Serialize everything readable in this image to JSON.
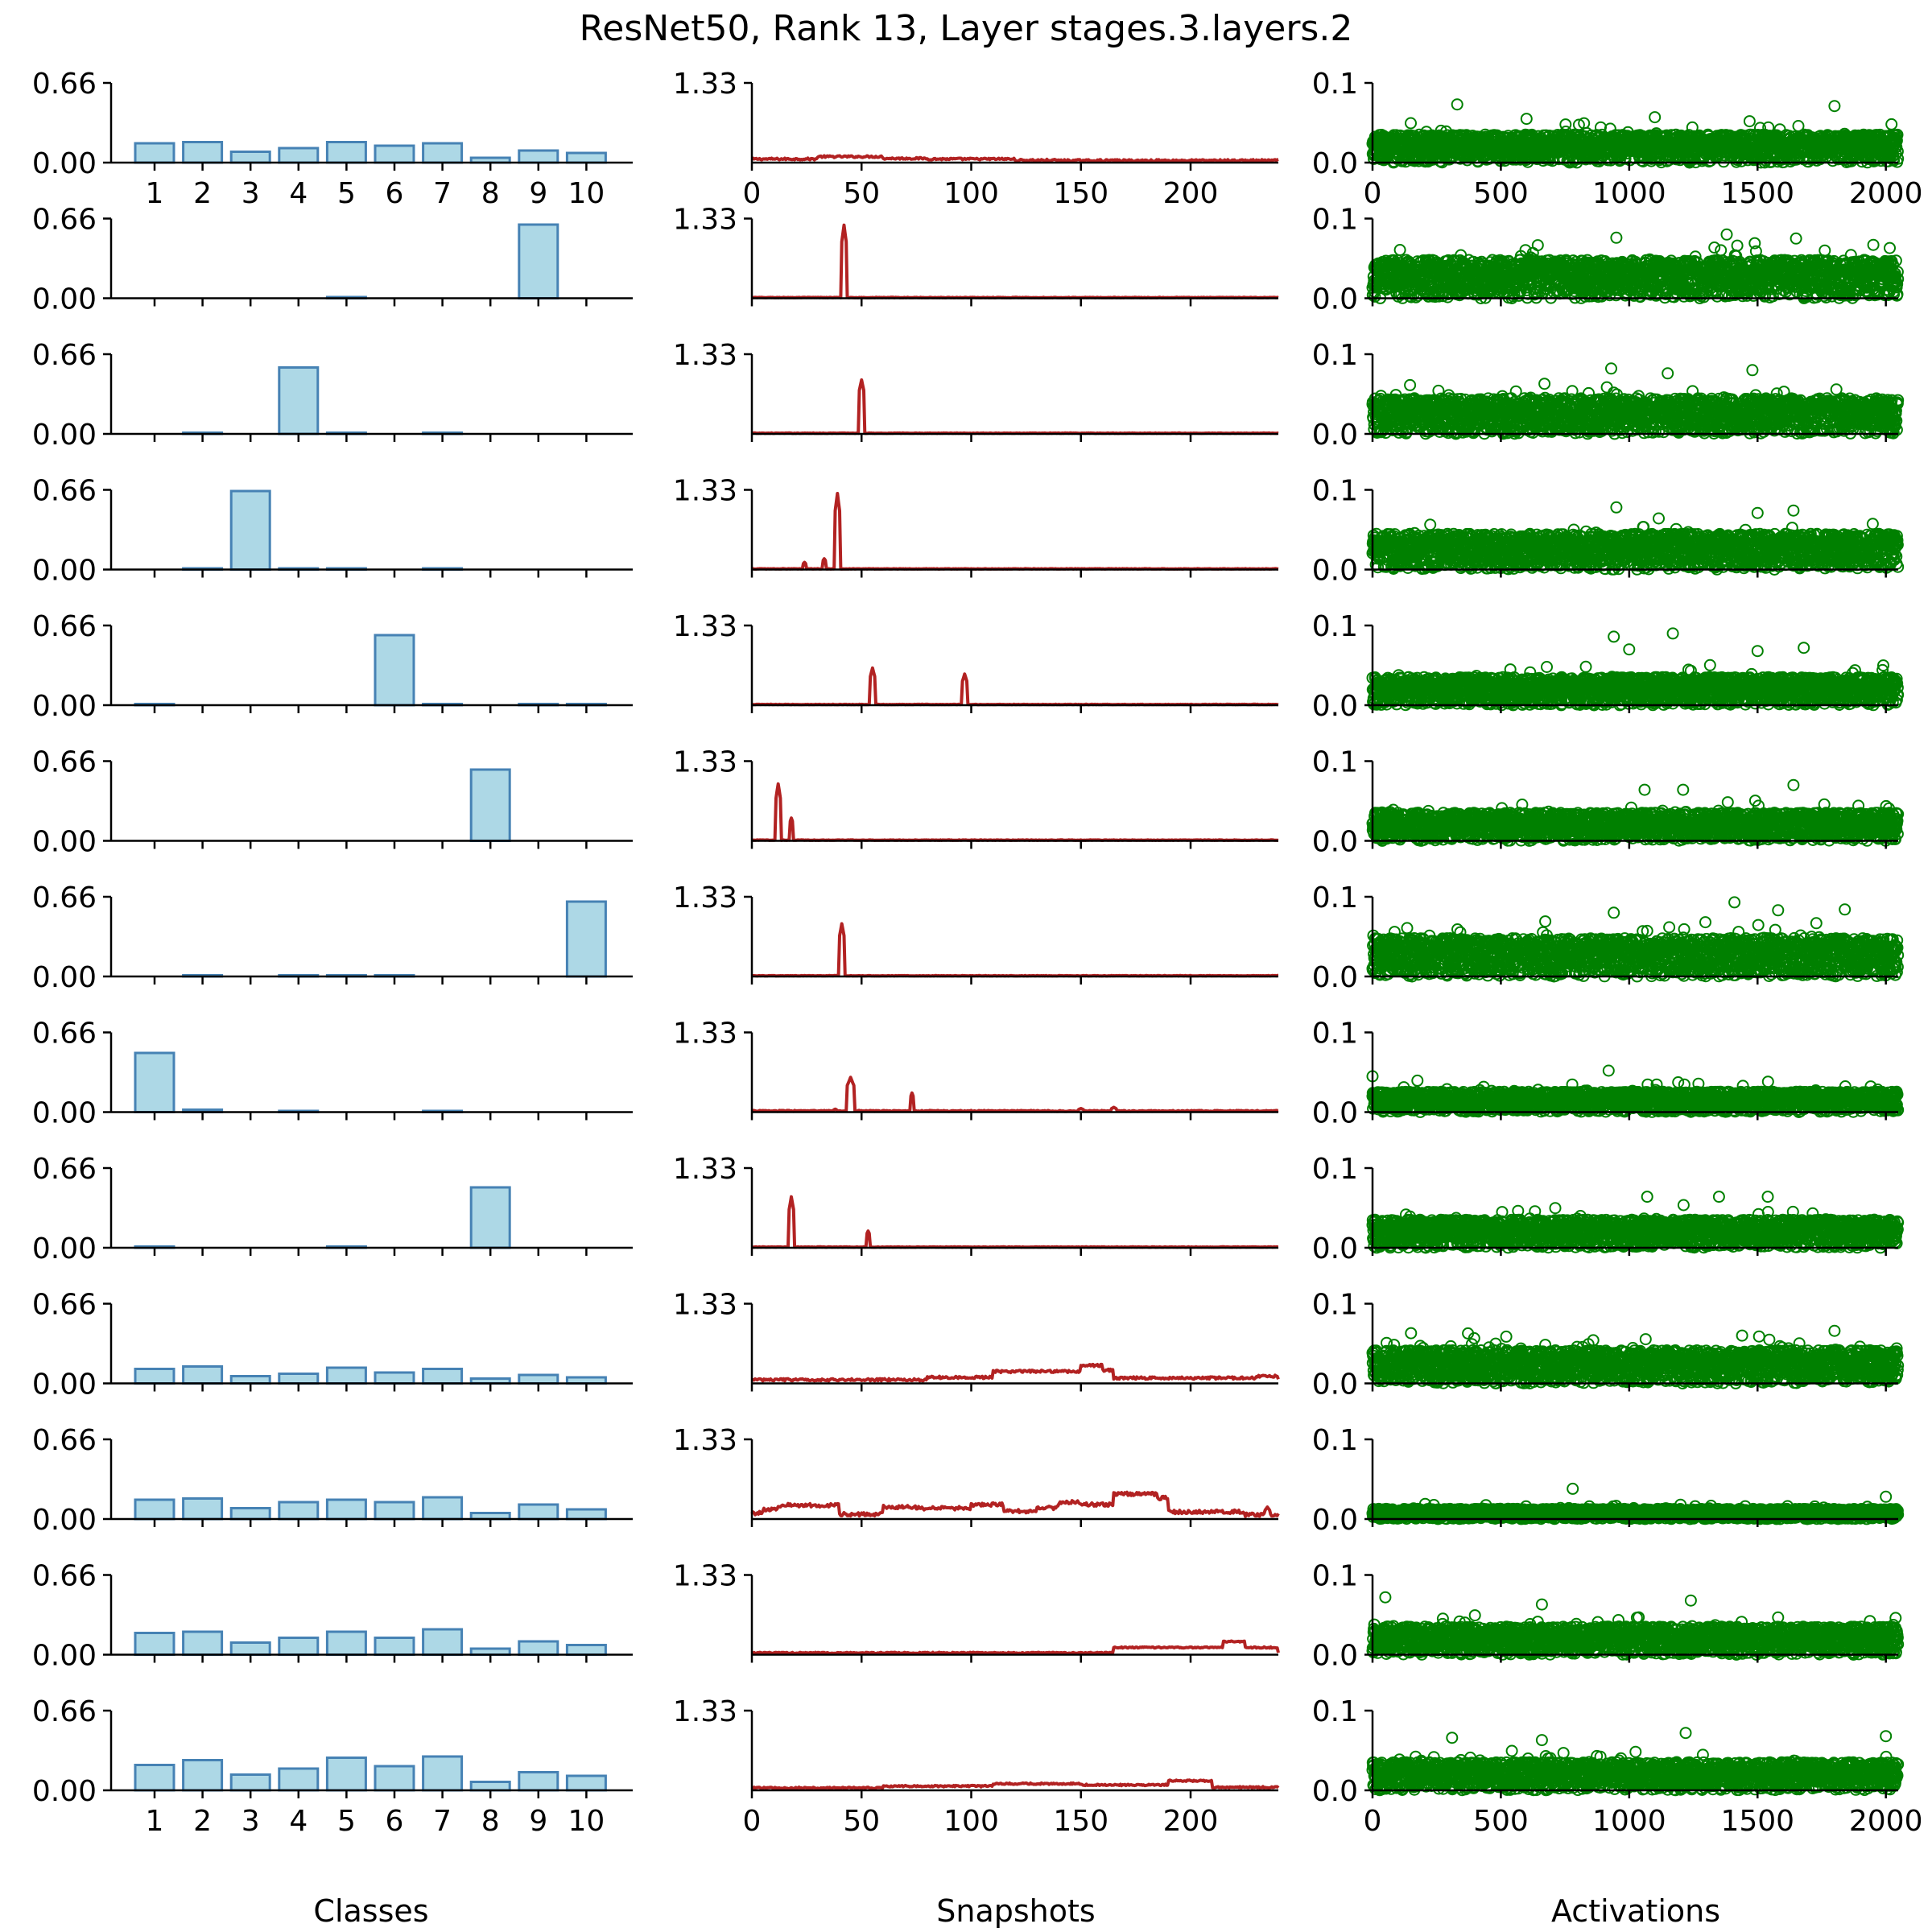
{
  "chart_data": {
    "type": "grid",
    "title": "ResNet50, Rank 13, Layer stages.3.layers.2",
    "n_rows": 13,
    "colors": {
      "bar_fill": "#add8e6",
      "bar_edge": "#4682b4",
      "line": "#b22222",
      "scatter": "#008000"
    },
    "bar_panel": {
      "type": "bar",
      "xlabel": "Classes",
      "categories": [
        "1",
        "2",
        "3",
        "4",
        "5",
        "6",
        "7",
        "8",
        "9",
        "10"
      ],
      "y_ticks": [
        "0.66",
        "0.00"
      ],
      "ylim": [
        0,
        0.66
      ],
      "rows": [
        [
          0.16,
          0.17,
          0.09,
          0.12,
          0.17,
          0.14,
          0.16,
          0.04,
          0.1,
          0.08
        ],
        [
          0.0,
          0.0,
          0.0,
          0.0,
          0.01,
          0.0,
          0.0,
          0.0,
          0.61,
          0.0
        ],
        [
          0.0,
          0.01,
          0.0,
          0.55,
          0.01,
          0.0,
          0.01,
          0.0,
          0.0,
          0.0
        ],
        [
          0.0,
          0.01,
          0.65,
          0.01,
          0.01,
          0.0,
          0.01,
          0.0,
          0.0,
          0.0
        ],
        [
          0.01,
          0.0,
          0.0,
          0.0,
          0.0,
          0.58,
          0.01,
          0.0,
          0.01,
          0.01
        ],
        [
          0.0,
          0.0,
          0.0,
          0.0,
          0.0,
          0.0,
          0.0,
          0.59,
          0.0,
          0.0
        ],
        [
          0.0,
          0.01,
          0.0,
          0.01,
          0.01,
          0.01,
          0.0,
          0.0,
          0.0,
          0.62
        ],
        [
          0.49,
          0.02,
          0.0,
          0.01,
          0.0,
          0.0,
          0.01,
          0.0,
          0.0,
          0.0
        ],
        [
          0.01,
          0.0,
          0.0,
          0.0,
          0.01,
          0.0,
          0.0,
          0.5,
          0.0,
          0.0
        ],
        [
          0.12,
          0.14,
          0.06,
          0.08,
          0.13,
          0.09,
          0.12,
          0.04,
          0.07,
          0.05
        ],
        [
          0.16,
          0.17,
          0.09,
          0.14,
          0.16,
          0.14,
          0.18,
          0.05,
          0.12,
          0.08
        ],
        [
          0.18,
          0.19,
          0.1,
          0.14,
          0.19,
          0.14,
          0.21,
          0.05,
          0.11,
          0.08
        ],
        [
          0.21,
          0.25,
          0.13,
          0.18,
          0.27,
          0.2,
          0.28,
          0.07,
          0.15,
          0.12
        ]
      ]
    },
    "line_panel": {
      "type": "line",
      "xlabel": "Snapshots",
      "x_ticks": [
        "0",
        "50",
        "100",
        "150",
        "200"
      ],
      "xlim": [
        0,
        240
      ],
      "y_ticks": [
        "1.33"
      ],
      "ylim": [
        0,
        1.33
      ],
      "rows": [
        {
          "base": 0.06,
          "noise": 0.015,
          "spikes": [],
          "segments": [
            [
              30,
              60,
              0.1
            ],
            [
              60,
              80,
              0.07
            ],
            [
              120,
              140,
              0.04
            ],
            [
              140,
              240,
              0.035
            ]
          ]
        },
        {
          "base": 0.012,
          "noise": 0.004,
          "spikes": [
            [
              42,
              1.22,
              1.1
            ]
          ],
          "segments": []
        },
        {
          "base": 0.012,
          "noise": 0.004,
          "spikes": [
            [
              50,
              0.9,
              1.3
            ]
          ],
          "segments": []
        },
        {
          "base": 0.012,
          "noise": 0.004,
          "spikes": [
            [
              24,
              0.12,
              0.8
            ],
            [
              33,
              0.18,
              0.9
            ],
            [
              39,
              1.27,
              1.1
            ]
          ],
          "segments": []
        },
        {
          "base": 0.012,
          "noise": 0.004,
          "spikes": [
            [
              55,
              0.62,
              1.1
            ],
            [
              97,
              0.52,
              1.1
            ]
          ],
          "segments": []
        },
        {
          "base": 0.012,
          "noise": 0.004,
          "spikes": [
            [
              12,
              0.95,
              1.0
            ],
            [
              18,
              0.38,
              0.9
            ]
          ],
          "segments": []
        },
        {
          "base": 0.012,
          "noise": 0.004,
          "spikes": [
            [
              41,
              0.88,
              1.1
            ]
          ],
          "segments": []
        },
        {
          "base": 0.02,
          "noise": 0.008,
          "spikes": [
            [
              45,
              0.58,
              1.6
            ],
            [
              73,
              0.32,
              0.8
            ],
            [
              38,
              0.05,
              0.8
            ],
            [
              150,
              0.06,
              1.0
            ],
            [
              165,
              0.08,
              1.0
            ]
          ],
          "segments": []
        },
        {
          "base": 0.012,
          "noise": 0.004,
          "spikes": [
            [
              18,
              0.85,
              1.0
            ],
            [
              53,
              0.28,
              0.9
            ]
          ],
          "segments": []
        },
        {
          "base": 0.06,
          "noise": 0.02,
          "spikes": [],
          "segments": [
            [
              80,
              110,
              0.1
            ],
            [
              110,
              150,
              0.2
            ],
            [
              150,
              160,
              0.3
            ],
            [
              160,
              165,
              0.22
            ],
            [
              165,
              230,
              0.09
            ],
            [
              230,
              240,
              0.12
            ]
          ]
        },
        {
          "base": 0.08,
          "noise": 0.03,
          "spikes": [
            [
              235,
              0.2,
              1.0
            ]
          ],
          "segments": [
            [
              0,
              5,
              0.1
            ],
            [
              5,
              12,
              0.16
            ],
            [
              12,
              40,
              0.23
            ],
            [
              40,
              60,
              0.08
            ],
            [
              60,
              75,
              0.2
            ],
            [
              75,
              100,
              0.18
            ],
            [
              100,
              115,
              0.24
            ],
            [
              115,
              130,
              0.13
            ],
            [
              130,
              140,
              0.19
            ],
            [
              140,
              150,
              0.28
            ],
            [
              150,
              165,
              0.24
            ],
            [
              165,
              185,
              0.42
            ],
            [
              185,
              190,
              0.35
            ],
            [
              190,
              225,
              0.12
            ],
            [
              225,
              240,
              0.07
            ]
          ]
        },
        {
          "base": 0.03,
          "noise": 0.01,
          "spikes": [],
          "segments": [
            [
              165,
              215,
              0.12
            ],
            [
              215,
              225,
              0.22
            ],
            [
              225,
              240,
              0.12
            ]
          ]
        },
        {
          "base": 0.04,
          "noise": 0.012,
          "spikes": [],
          "segments": [
            [
              60,
              110,
              0.07
            ],
            [
              110,
              150,
              0.11
            ],
            [
              150,
              190,
              0.09
            ],
            [
              190,
              210,
              0.16
            ],
            [
              210,
              240,
              0.05
            ]
          ]
        }
      ]
    },
    "scatter_panel": {
      "type": "scatter",
      "xlabel": "Activations",
      "x_ticks": [
        "0",
        "500",
        "1000",
        "1500",
        "2000"
      ],
      "xlim": [
        0,
        2048
      ],
      "y_ticks": [
        "0.1",
        "0.0"
      ],
      "ylim": [
        0,
        0.1
      ],
      "n_points": 2048,
      "rows": [
        {
          "scale": 0.022,
          "outliers": [
            [
              330,
              0.073
            ],
            [
              600,
              0.055
            ],
            [
              1800,
              0.071
            ],
            [
              1100,
              0.057
            ]
          ]
        },
        {
          "scale": 0.03,
          "outliers": [
            [
              1380,
              0.08
            ],
            [
              950,
              0.076
            ],
            [
              1650,
              0.075
            ]
          ]
        },
        {
          "scale": 0.028,
          "outliers": [
            [
              930,
              0.082
            ],
            [
              1480,
              0.08
            ],
            [
              1150,
              0.076
            ]
          ]
        },
        {
          "scale": 0.028,
          "outliers": [
            [
              950,
              0.078
            ],
            [
              1640,
              0.074
            ],
            [
              1500,
              0.071
            ]
          ]
        },
        {
          "scale": 0.022,
          "outliers": [
            [
              1170,
              0.09
            ],
            [
              940,
              0.086
            ],
            [
              1000,
              0.07
            ],
            [
              1680,
              0.072
            ],
            [
              1500,
              0.068
            ]
          ]
        },
        {
          "scale": 0.022,
          "outliers": [
            [
              1640,
              0.07
            ],
            [
              1060,
              0.064
            ],
            [
              1210,
              0.064
            ]
          ]
        },
        {
          "scale": 0.03,
          "outliers": [
            [
              1410,
              0.093
            ],
            [
              1580,
              0.083
            ],
            [
              1840,
              0.084
            ],
            [
              940,
              0.08
            ]
          ]
        },
        {
          "scale": 0.016,
          "outliers": [
            [
              920,
              0.052
            ],
            [
              0,
              0.045
            ]
          ]
        },
        {
          "scale": 0.022,
          "outliers": [
            [
              1070,
              0.064
            ],
            [
              1350,
              0.064
            ],
            [
              1540,
              0.064
            ]
          ]
        },
        {
          "scale": 0.026,
          "outliers": [
            [
              1800,
              0.066
            ],
            [
              150,
              0.063
            ],
            [
              1440,
              0.06
            ]
          ]
        },
        {
          "scale": 0.008,
          "outliers": [
            [
              780,
              0.038
            ],
            [
              2000,
              0.028
            ]
          ]
        },
        {
          "scale": 0.022,
          "outliers": [
            [
              50,
              0.072
            ],
            [
              1240,
              0.068
            ],
            [
              660,
              0.063
            ]
          ]
        },
        {
          "scale": 0.022,
          "outliers": [
            [
              1220,
              0.072
            ],
            [
              2000,
              0.068
            ],
            [
              310,
              0.066
            ],
            [
              660,
              0.063
            ]
          ]
        }
      ]
    }
  }
}
